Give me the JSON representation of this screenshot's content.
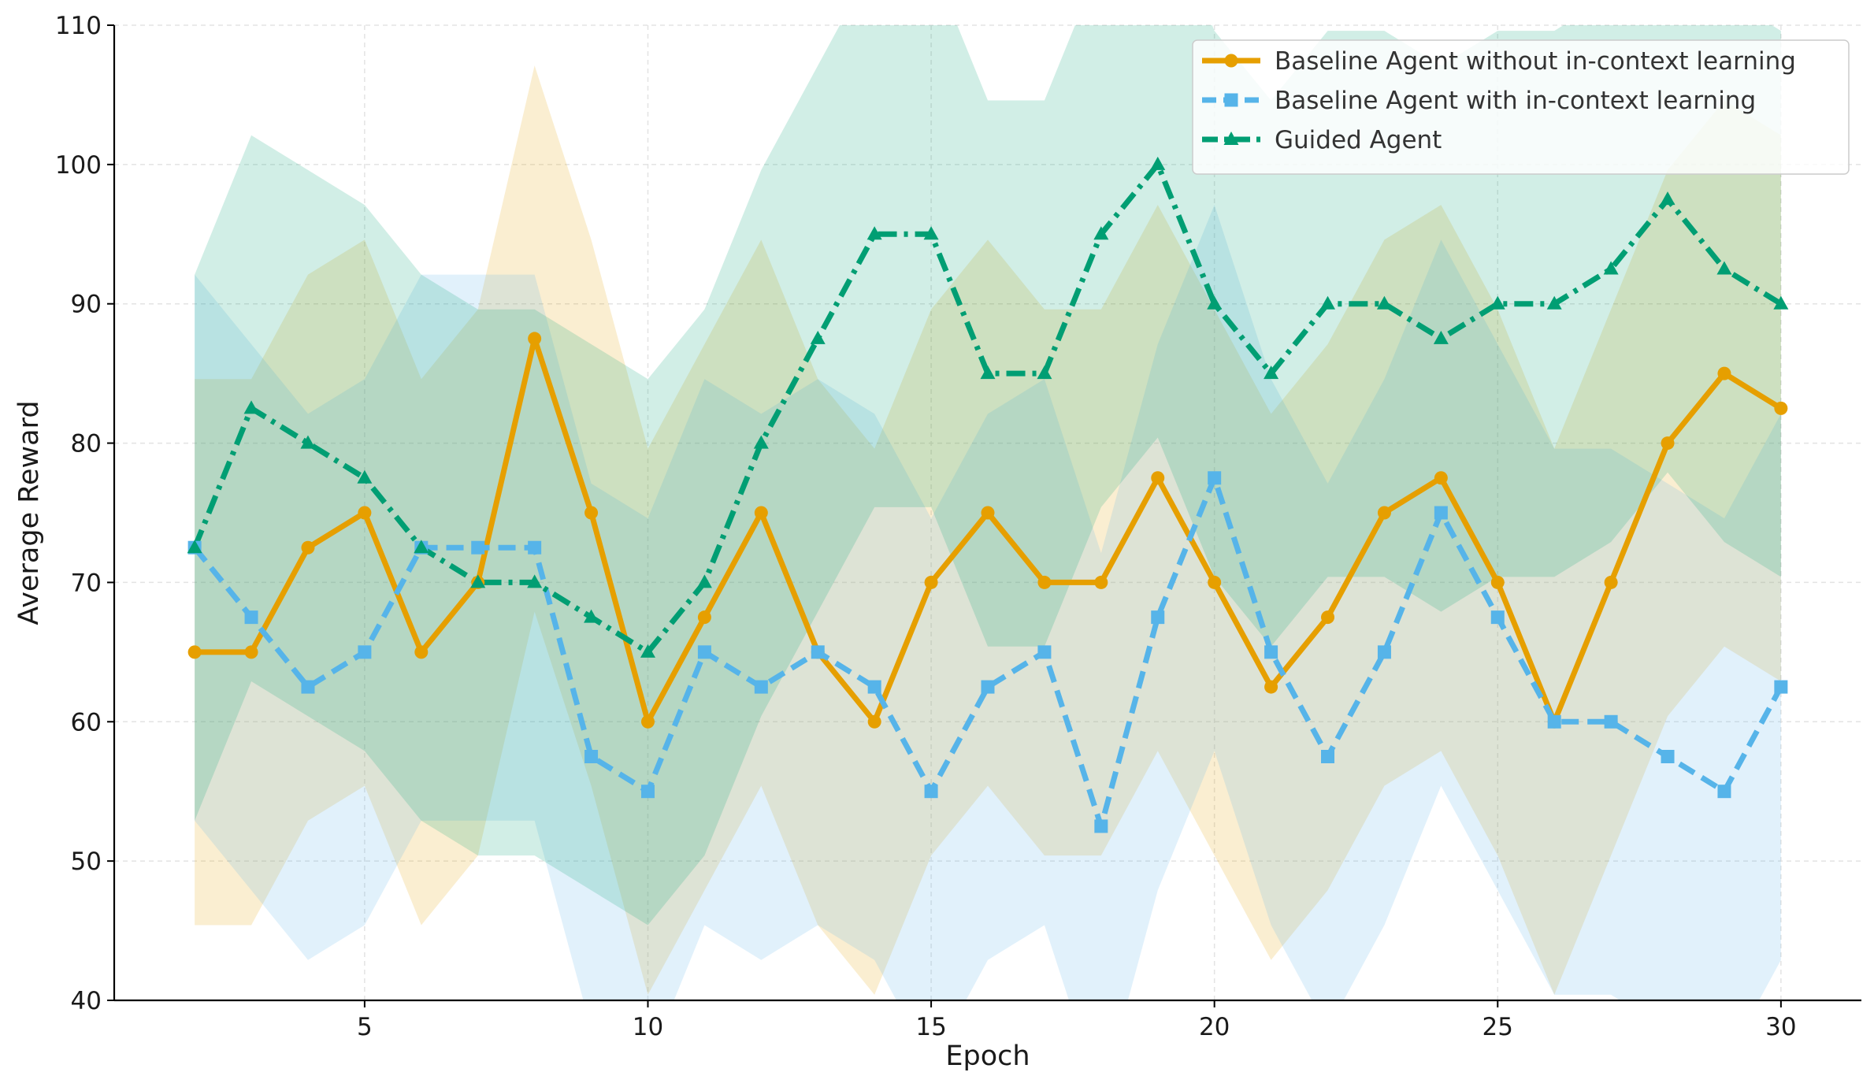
{
  "chart_data": {
    "type": "line",
    "title": "",
    "xlabel": "Epoch",
    "ylabel": "Average Reward",
    "xlim": [
      0.58,
      31.42
    ],
    "ylim": [
      40,
      110
    ],
    "xticks": [
      5,
      10,
      15,
      20,
      25,
      30
    ],
    "yticks": [
      40,
      50,
      60,
      70,
      80,
      90,
      100,
      110
    ],
    "grid": true,
    "legend_position": "top-right",
    "x": [
      2,
      3,
      4,
      5,
      6,
      7,
      8,
      9,
      10,
      11,
      12,
      13,
      14,
      15,
      16,
      17,
      18,
      19,
      20,
      21,
      22,
      23,
      24,
      25,
      26,
      27,
      28,
      29,
      30
    ],
    "series": [
      {
        "name": "Baseline Agent without in-context learning",
        "color": "#E69F00",
        "line_style": "solid",
        "marker": "circle",
        "values": [
          65,
          65,
          72.5,
          75,
          65,
          70,
          87.5,
          75,
          60,
          67.5,
          75,
          65,
          60,
          70,
          75,
          70,
          70,
          77.5,
          70,
          62.5,
          67.5,
          75,
          77.5,
          70,
          60,
          70,
          80,
          85,
          82.5
        ],
        "band_lower": [
          45.4,
          45.4,
          52.9,
          55.4,
          45.4,
          50.4,
          67.9,
          55.4,
          40.4,
          47.9,
          55.4,
          45.4,
          40.4,
          50.4,
          55.4,
          50.4,
          50.4,
          57.9,
          50.4,
          42.9,
          47.9,
          55.4,
          57.9,
          50.4,
          40.4,
          50.4,
          60.4,
          65.4,
          62.9
        ],
        "band_upper": [
          84.6,
          84.6,
          92.1,
          94.6,
          84.6,
          89.6,
          107.1,
          94.6,
          79.6,
          87.1,
          94.6,
          84.6,
          79.6,
          89.6,
          94.6,
          89.6,
          89.6,
          97.1,
          89.6,
          82.1,
          87.1,
          94.6,
          97.1,
          89.6,
          79.6,
          89.6,
          99.6,
          104.6,
          102.1
        ]
      },
      {
        "name": "Baseline Agent with in-context learning",
        "color": "#56B4E9",
        "line_style": "dashed",
        "marker": "square",
        "values": [
          72.5,
          67.5,
          62.5,
          65,
          72.5,
          72.5,
          72.5,
          57.5,
          55,
          65,
          62.5,
          65,
          62.5,
          55,
          62.5,
          65,
          52.5,
          67.5,
          77.5,
          65,
          57.5,
          65,
          75,
          67.5,
          60,
          60,
          57.5,
          55,
          62.5
        ],
        "band_lower": [
          52.9,
          47.9,
          42.9,
          45.4,
          52.9,
          52.9,
          52.9,
          37.9,
          35.4,
          45.4,
          42.9,
          45.4,
          42.9,
          35.4,
          42.9,
          45.4,
          32.9,
          47.9,
          57.9,
          45.4,
          37.9,
          45.4,
          55.4,
          47.9,
          40.4,
          40.4,
          37.9,
          35.4,
          42.9
        ],
        "band_upper": [
          92.1,
          87.1,
          82.1,
          84.6,
          92.1,
          92.1,
          92.1,
          77.1,
          74.6,
          84.6,
          82.1,
          84.6,
          82.1,
          74.6,
          82.1,
          84.6,
          72.1,
          87.1,
          97.1,
          84.6,
          77.1,
          84.6,
          94.6,
          87.1,
          79.6,
          79.6,
          77.1,
          74.6,
          82.1
        ]
      },
      {
        "name": "Guided Agent",
        "color": "#009E73",
        "line_style": "dashdot",
        "marker": "triangle",
        "values": [
          72.5,
          82.5,
          80,
          77.5,
          72.5,
          70,
          70,
          67.5,
          65,
          70,
          80,
          87.5,
          95,
          95,
          85,
          85,
          95,
          100,
          90,
          85,
          90,
          90,
          87.5,
          90,
          90,
          92.5,
          97.5,
          92.5,
          90
        ],
        "band_lower": [
          52.9,
          62.9,
          60.4,
          57.9,
          52.9,
          50.4,
          50.4,
          47.9,
          45.4,
          50.4,
          60.4,
          67.9,
          75.4,
          75.4,
          65.4,
          65.4,
          75.4,
          80.4,
          70.4,
          65.4,
          70.4,
          70.4,
          67.9,
          70.4,
          70.4,
          72.9,
          77.9,
          72.9,
          70.4
        ],
        "band_upper": [
          92.1,
          102.1,
          99.6,
          97.1,
          92.1,
          89.6,
          89.6,
          87.1,
          84.6,
          89.6,
          99.6,
          107.1,
          114.6,
          114.6,
          104.6,
          104.6,
          114.6,
          119.6,
          109.6,
          104.6,
          109.6,
          109.6,
          107.1,
          109.6,
          109.6,
          112.1,
          117.1,
          112.1,
          109.6
        ]
      }
    ]
  }
}
